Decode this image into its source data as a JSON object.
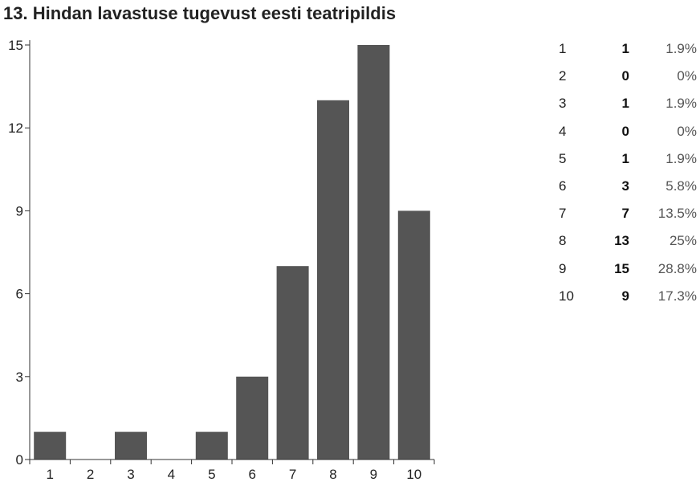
{
  "chart_data": {
    "type": "bar",
    "title": "13. Hindan lavastuse tugevust eesti teatripildis",
    "categories": [
      "1",
      "2",
      "3",
      "4",
      "5",
      "6",
      "7",
      "8",
      "9",
      "10"
    ],
    "values": [
      1,
      0,
      1,
      0,
      1,
      3,
      7,
      13,
      15,
      9
    ],
    "percentages": [
      "1.9%",
      "0%",
      "1.9%",
      "0%",
      "1.9%",
      "5.8%",
      "13.5%",
      "25%",
      "28.8%",
      "17.3%"
    ],
    "yticks": [
      0,
      3,
      6,
      9,
      12,
      15
    ],
    "ylim": [
      0,
      15
    ],
    "xlabel": "",
    "ylabel": "",
    "bar_color": "#555555",
    "grid": false,
    "legend": "none"
  }
}
